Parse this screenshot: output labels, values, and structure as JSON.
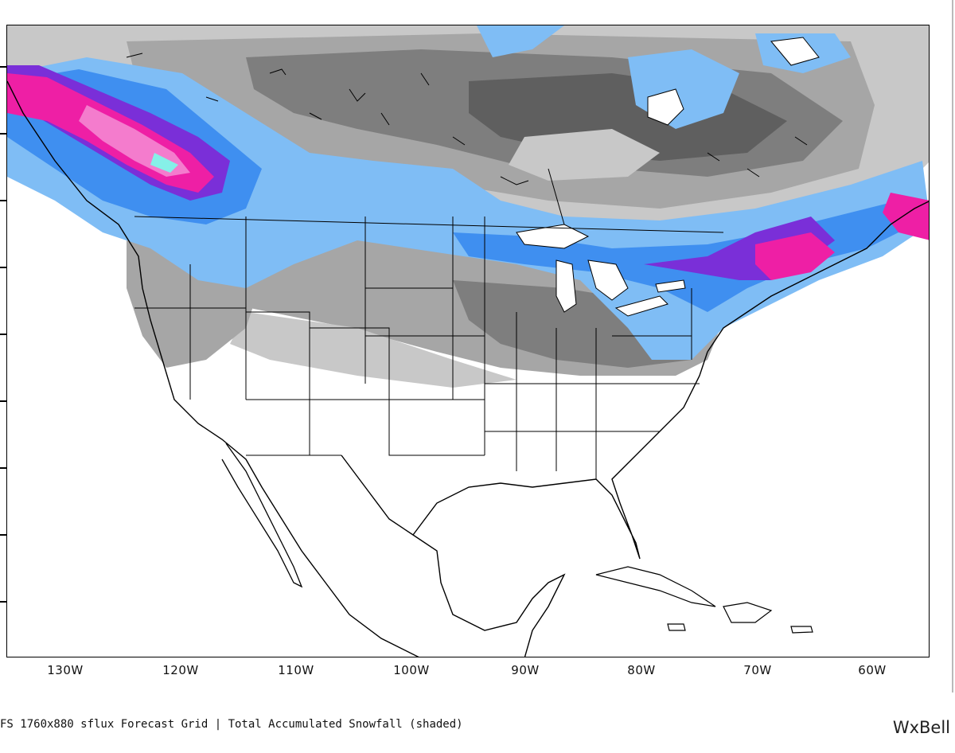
{
  "map": {
    "caption": "FS 1760x880 sflux Forecast Grid | Total Accumulated Snowfall (shaded)",
    "brand": "WxBell",
    "lon_labels": [
      "130W",
      "120W",
      "110W",
      "100W",
      "90W",
      "80W",
      "70W",
      "60W"
    ],
    "colors": {
      "snow_gray_light": "#c8c8c8",
      "snow_gray_mid": "#a6a6a6",
      "snow_gray_dark": "#7e7e7e",
      "snow_gray_darkest": "#5f5f5f",
      "snow_blue_light": "#7fbdf5",
      "snow_blue": "#3f8ff0",
      "snow_blue_dark": "#2f6fe0",
      "snow_purple": "#7a2fd8",
      "snow_magenta": "#ee1fa5",
      "snow_pink": "#f47ccd",
      "snow_cyan": "#86f0e8",
      "coastline": "#000000"
    }
  }
}
